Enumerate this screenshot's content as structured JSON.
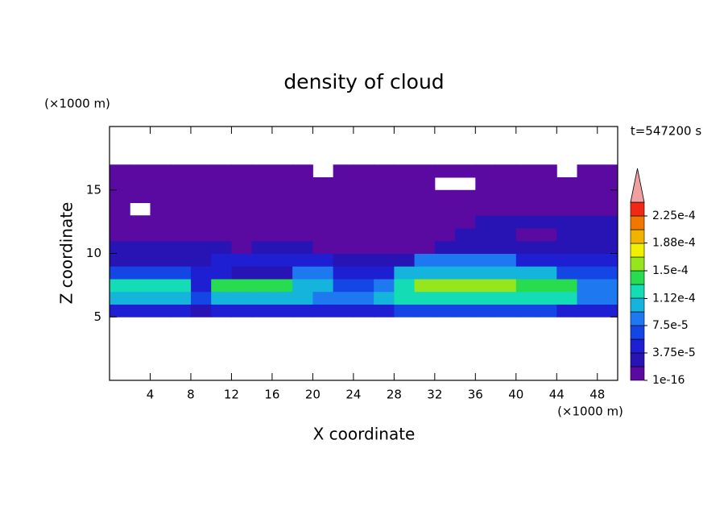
{
  "chart_data": {
    "type": "contour",
    "title": "density of cloud",
    "x_label": "X coordinate",
    "y_label": "Z coordinate",
    "x_unit": "(×1000 m)",
    "y_unit": "(×1000 m)",
    "time_label": "t=547200 s",
    "xlim": [
      0,
      50
    ],
    "ylim": [
      0,
      20
    ],
    "xticks": [
      4,
      8,
      12,
      16,
      20,
      24,
      28,
      32,
      36,
      40,
      44,
      48
    ],
    "yticks": [
      5,
      10,
      15
    ],
    "x": [
      1,
      3,
      5,
      7,
      9,
      11,
      13,
      15,
      17,
      19,
      21,
      23,
      25,
      27,
      29,
      31,
      33,
      35,
      37,
      39,
      41,
      43,
      45,
      47,
      49
    ],
    "y": [
      5.5,
      6.5,
      7.5,
      8.5,
      9.5,
      10.5,
      11.5,
      12.5,
      13.5,
      14.5,
      15.5,
      16.5
    ],
    "values": [
      [
        5e-05,
        5e-05,
        5e-05,
        5e-05,
        3e-05,
        5e-05,
        5e-05,
        5e-05,
        5e-05,
        5e-05,
        5e-05,
        5e-05,
        5e-05,
        5e-05,
        6.5e-05,
        6.5e-05,
        6.5e-05,
        6.5e-05,
        6.5e-05,
        6.5e-05,
        6.5e-05,
        6.5e-05,
        5e-05,
        5e-05,
        5e-05
      ],
      [
        0.0001,
        0.0001,
        0.0001,
        0.0001,
        6.5e-05,
        0.0001,
        0.0001,
        0.0001,
        0.0001,
        0.0001,
        8.5e-05,
        8.5e-05,
        8.5e-05,
        0.0001,
        0.00012,
        0.00012,
        0.00012,
        0.00012,
        0.00012,
        0.00012,
        0.00012,
        0.00012,
        0.00012,
        8.5e-05,
        8.5e-05
      ],
      [
        0.00012,
        0.00012,
        0.00012,
        0.00012,
        5e-05,
        0.00014,
        0.00014,
        0.00014,
        0.00014,
        0.0001,
        0.0001,
        6.5e-05,
        6.5e-05,
        8.5e-05,
        0.00012,
        0.00016,
        0.00016,
        0.00016,
        0.00016,
        0.00016,
        0.00014,
        0.00014,
        0.00014,
        8.5e-05,
        8.5e-05
      ],
      [
        6.5e-05,
        6.5e-05,
        6.5e-05,
        6.5e-05,
        5e-05,
        5e-05,
        3e-05,
        3e-05,
        3e-05,
        8.5e-05,
        8.5e-05,
        5e-05,
        5e-05,
        5e-05,
        0.0001,
        0.0001,
        0.0001,
        0.0001,
        0.0001,
        0.0001,
        0.0001,
        0.0001,
        6.5e-05,
        6.5e-05,
        6.5e-05
      ],
      [
        3e-05,
        3e-05,
        3e-05,
        3e-05,
        3e-05,
        5e-05,
        5e-05,
        5e-05,
        5e-05,
        5e-05,
        5e-05,
        3e-05,
        3e-05,
        3e-05,
        3e-05,
        8.5e-05,
        8.5e-05,
        8.5e-05,
        8.5e-05,
        8.5e-05,
        5e-05,
        5e-05,
        5e-05,
        5e-05,
        5e-05
      ],
      [
        3e-05,
        3e-05,
        3e-05,
        3e-05,
        3e-05,
        3e-05,
        1e-05,
        3e-05,
        3e-05,
        3e-05,
        1e-05,
        1e-05,
        1e-05,
        1e-05,
        1e-05,
        1e-05,
        3e-05,
        3e-05,
        3e-05,
        3e-05,
        3e-05,
        3e-05,
        3e-05,
        3e-05,
        3e-05
      ],
      [
        1e-05,
        1e-05,
        1e-05,
        1e-05,
        1e-05,
        1e-05,
        1e-05,
        1e-05,
        1e-05,
        1e-05,
        1e-05,
        1e-05,
        1e-05,
        1e-05,
        1e-05,
        1e-05,
        1e-05,
        3e-05,
        3e-05,
        3e-05,
        1e-05,
        1e-05,
        3e-05,
        3e-05,
        3e-05
      ],
      [
        1e-05,
        1e-05,
        1e-05,
        1e-05,
        1e-05,
        1e-05,
        1e-05,
        1e-05,
        1e-05,
        1e-05,
        1e-05,
        1e-05,
        1e-05,
        1e-05,
        1e-05,
        1e-05,
        1e-05,
        1e-05,
        3e-05,
        3e-05,
        3e-05,
        3e-05,
        3e-05,
        3e-05,
        3e-05
      ],
      [
        1e-05,
        null,
        1e-05,
        1e-05,
        1e-05,
        1e-05,
        1e-05,
        1e-05,
        1e-05,
        1e-05,
        1e-05,
        1e-05,
        1e-05,
        1e-05,
        1e-05,
        1e-05,
        1e-05,
        1e-05,
        1e-05,
        1e-05,
        1e-05,
        1e-05,
        1e-05,
        1e-05,
        1e-05
      ],
      [
        1e-05,
        1e-05,
        1e-05,
        1e-05,
        1e-05,
        1e-05,
        1e-05,
        1e-05,
        1e-05,
        1e-05,
        1e-05,
        1e-05,
        1e-05,
        1e-05,
        1e-05,
        1e-05,
        1e-05,
        1e-05,
        1e-05,
        1e-05,
        1e-05,
        1e-05,
        1e-05,
        1e-05,
        1e-05
      ],
      [
        1e-05,
        1e-05,
        1e-05,
        1e-05,
        1e-05,
        1e-05,
        1e-05,
        1e-05,
        1e-05,
        1e-05,
        1e-05,
        1e-05,
        1e-05,
        1e-05,
        1e-05,
        1e-05,
        null,
        null,
        1e-05,
        1e-05,
        1e-05,
        1e-05,
        1e-05,
        1e-05,
        1e-05
      ],
      [
        1e-05,
        1e-05,
        1e-05,
        1e-05,
        1e-05,
        1e-05,
        1e-05,
        1e-05,
        1e-05,
        1e-05,
        null,
        1e-05,
        1e-05,
        1e-05,
        1e-05,
        1e-05,
        1e-05,
        1e-05,
        1e-05,
        1e-05,
        1e-05,
        1e-05,
        null,
        1e-05,
        1e-05
      ]
    ],
    "levels": [
      1e-16,
      1.875e-05,
      3.75e-05,
      5.625e-05,
      7.5e-05,
      9.375e-05,
      0.0001125,
      0.00013125,
      0.00015,
      0.00016875,
      0.0001875,
      0.00020625,
      0.000225,
      0.00024375
    ],
    "colors": [
      "#5a0aa0",
      "#2814b4",
      "#1e1ed2",
      "#1446e6",
      "#1e78f0",
      "#14b4dc",
      "#14dcb4",
      "#28dc50",
      "#96e61e",
      "#f0f000",
      "#f0b400",
      "#f07800",
      "#f02814"
    ],
    "extend_color": "#f0a0a0",
    "cbar_ticks": [
      1e-16,
      {
        "value": 3.75e-05,
        "label": "3.75e-5"
      },
      {
        "value": 7.5e-05,
        "label": "7.5e-5"
      },
      {
        "value": 0.000112,
        "label": "1.12e-4"
      },
      {
        "value": 0.00015,
        "label": "1.5e-4"
      },
      {
        "value": 0.000188,
        "label": "1.88e-4"
      },
      {
        "value": 0.000225,
        "label": "2.25e-4"
      }
    ]
  }
}
